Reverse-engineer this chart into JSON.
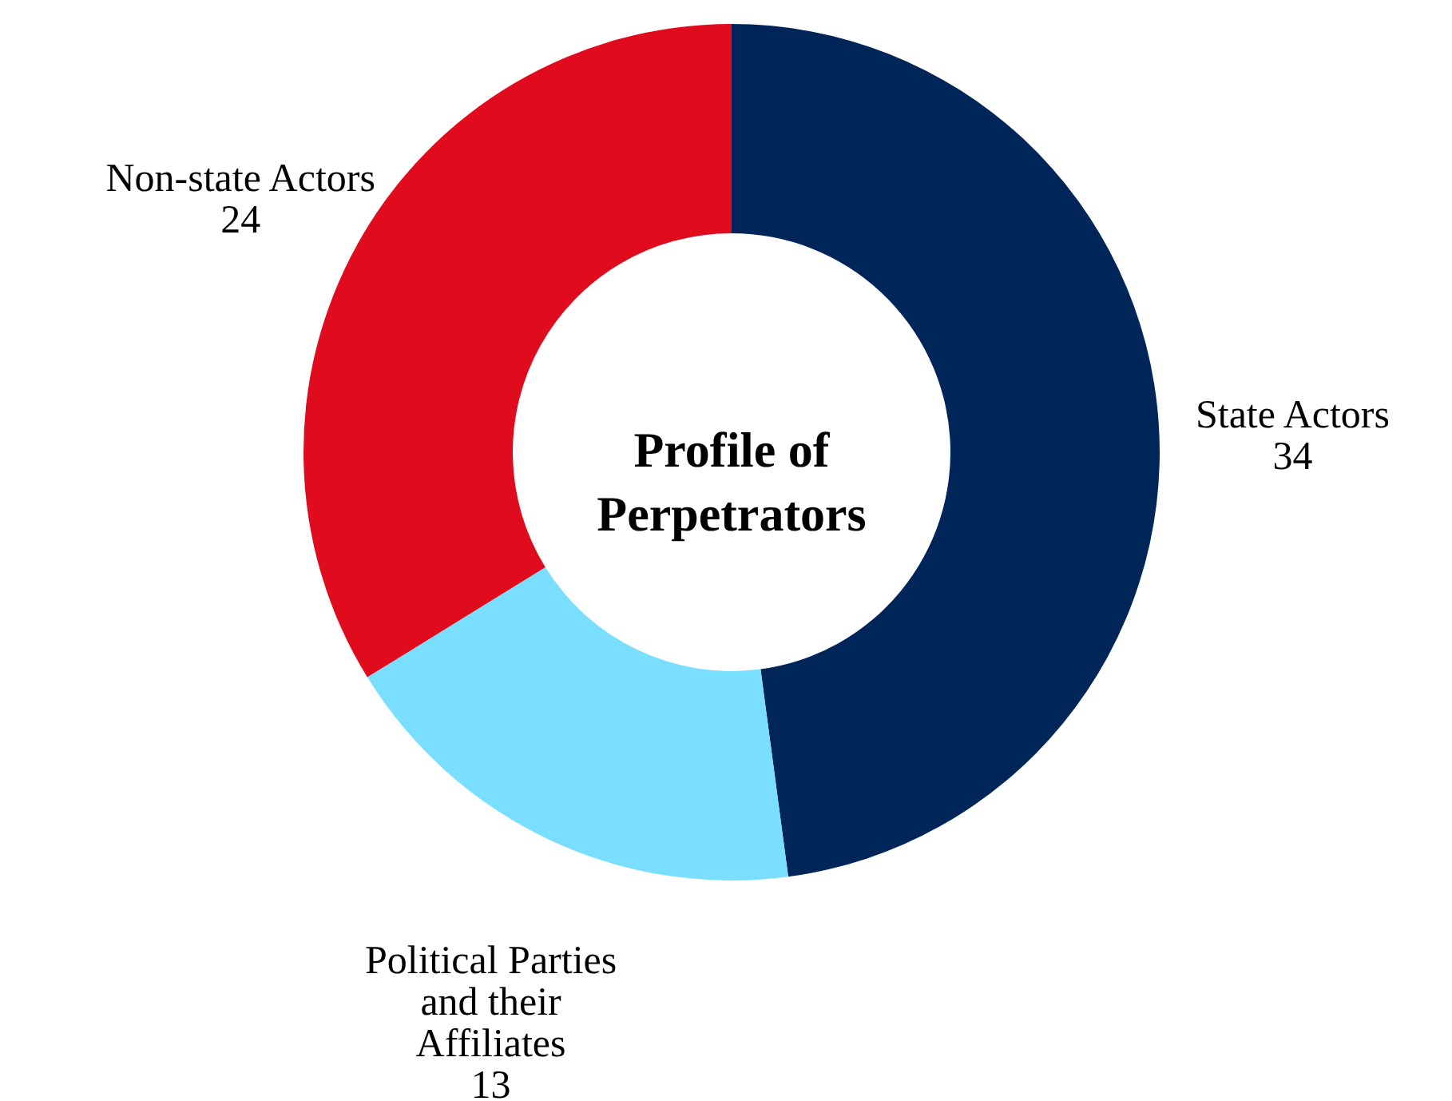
{
  "chart_data": {
    "type": "donut",
    "title": "Profile of Perpetrators",
    "categories": [
      "State Actors",
      "Political Parties and their Affiliates",
      "Non-state Actors"
    ],
    "values": [
      34,
      13,
      24
    ],
    "colors": [
      "#002559",
      "#7adfff",
      "#e00b1c"
    ],
    "data_labels": true
  }
}
